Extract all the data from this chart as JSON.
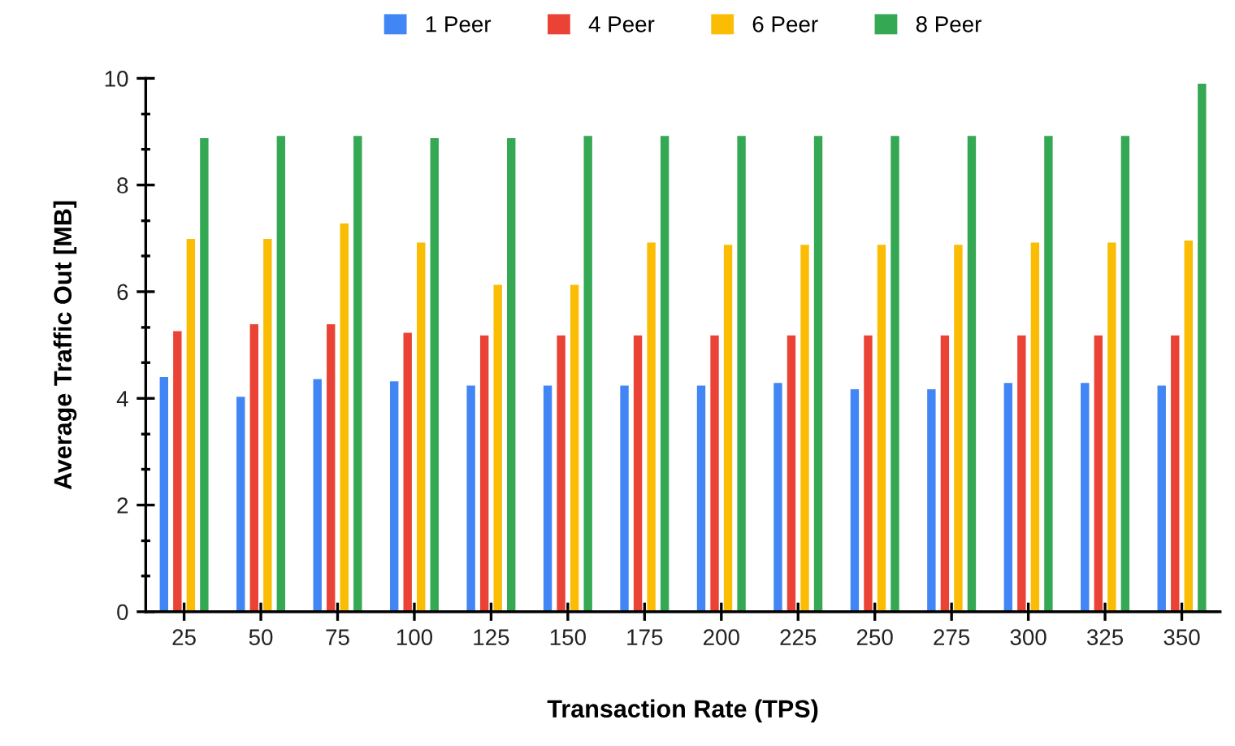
{
  "chart_data": {
    "type": "bar",
    "xlabel": "Transaction Rate (TPS)",
    "ylabel": "Average Traffic Out [MB]",
    "categories": [
      "25",
      "50",
      "75",
      "100",
      "125",
      "150",
      "175",
      "200",
      "225",
      "250",
      "275",
      "300",
      "325",
      "350"
    ],
    "series": [
      {
        "name": "1 Peer",
        "color": "#4285f4",
        "values": [
          4.4,
          4.03,
          4.36,
          4.32,
          4.24,
          4.24,
          4.24,
          4.24,
          4.29,
          4.17,
          4.17,
          4.29,
          4.29,
          4.24
        ]
      },
      {
        "name": "4 Peer",
        "color": "#ea4335",
        "values": [
          5.26,
          5.39,
          5.39,
          5.23,
          5.18,
          5.18,
          5.18,
          5.18,
          5.18,
          5.18,
          5.18,
          5.18,
          5.18,
          5.18
        ]
      },
      {
        "name": "6 Peer",
        "color": "#fbbc04",
        "values": [
          6.99,
          6.99,
          7.28,
          6.92,
          6.13,
          6.13,
          6.92,
          6.88,
          6.88,
          6.88,
          6.88,
          6.92,
          6.92,
          6.96
        ]
      },
      {
        "name": "8 Peer",
        "color": "#34a853",
        "values": [
          8.88,
          8.92,
          8.92,
          8.88,
          8.88,
          8.92,
          8.92,
          8.92,
          8.92,
          8.92,
          8.92,
          8.92,
          8.92,
          9.9
        ]
      }
    ],
    "ylim": [
      0,
      10
    ],
    "yticks": [
      0,
      {
        "value": 0.67,
        "label": null
      },
      {
        "value": 1.33,
        "label": null
      },
      2,
      {
        "value": 2.67,
        "label": null
      },
      {
        "value": 3.33,
        "label": null
      },
      4,
      {
        "value": 4.67,
        "label": null
      },
      {
        "value": 5.33,
        "label": null
      },
      6,
      {
        "value": 6.67,
        "label": null
      },
      {
        "value": 7.33,
        "label": null
      },
      8,
      {
        "value": 8.67,
        "label": null
      },
      {
        "value": 9.33,
        "label": null
      },
      10
    ],
    "grid": false,
    "legend": "top"
  }
}
